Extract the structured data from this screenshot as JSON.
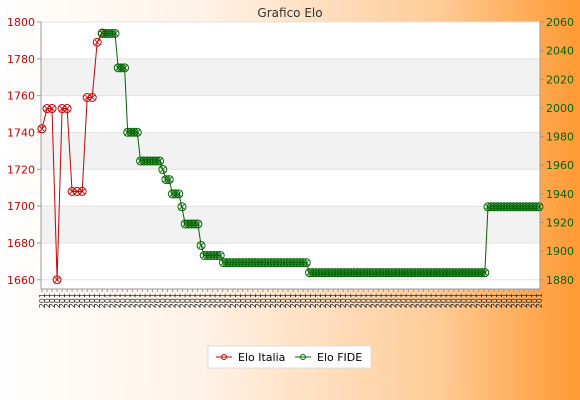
{
  "chart_data": {
    "type": "line",
    "title": "Grafico Elo",
    "y_left": {
      "ticks": [
        1660,
        1680,
        1700,
        1720,
        1740,
        1760,
        1780,
        1800
      ],
      "range": [
        1655,
        1800
      ],
      "color": "#cc0000"
    },
    "y_right": {
      "ticks": [
        1880,
        1900,
        1920,
        1940,
        1960,
        1980,
        2000,
        2020,
        2040,
        2060
      ],
      "range": [
        1873.6,
        2060
      ],
      "color": "#006600"
    },
    "x_tick_label": "201",
    "x_count": 100,
    "series": [
      {
        "name": "Elo Italia",
        "axis": "left",
        "color": "#cc0000",
        "values": [
          1742,
          1753,
          1753,
          1660,
          1753,
          1753,
          1708,
          1708,
          1708,
          1759,
          1759,
          1789,
          1794
        ]
      },
      {
        "name": "Elo FIDE",
        "axis": "right",
        "color": "#006600",
        "values": [
          2052,
          2052,
          2052,
          2052,
          2052,
          2028,
          2028,
          2028,
          1983,
          1983,
          1983,
          1983,
          1963,
          1963,
          1963,
          1963,
          1963,
          1963,
          1963,
          1957,
          1950,
          1950,
          1940,
          1940,
          1940,
          1931,
          1919,
          1919,
          1919,
          1919,
          1919,
          1904,
          1897,
          1897,
          1897,
          1897,
          1897,
          1897,
          1892,
          1892,
          1892,
          1892,
          1892,
          1892,
          1892,
          1892,
          1892,
          1892,
          1892,
          1892,
          1892,
          1892,
          1892,
          1892,
          1892,
          1892,
          1892,
          1892,
          1892,
          1892,
          1892,
          1892,
          1892,
          1892,
          1892,
          1885,
          1885,
          1885,
          1885,
          1885,
          1885,
          1885,
          1885,
          1885,
          1885,
          1885,
          1885,
          1885,
          1885,
          1885,
          1885,
          1885,
          1885,
          1885,
          1885,
          1885,
          1885,
          1885,
          1885,
          1885,
          1885,
          1885,
          1885,
          1885,
          1885,
          1885,
          1885,
          1885,
          1885,
          1885,
          1885,
          1885,
          1885,
          1885,
          1885,
          1885,
          1885,
          1885,
          1885,
          1885,
          1885,
          1885,
          1885,
          1885,
          1885,
          1885,
          1885,
          1885,
          1885,
          1885,
          1885,
          1931,
          1931,
          1931,
          1931,
          1931,
          1931,
          1931,
          1931,
          1931,
          1931,
          1931,
          1931,
          1931,
          1931,
          1931,
          1931,
          1931
        ]
      }
    ],
    "legend": [
      "Elo Italia",
      "Elo FIDE"
    ],
    "legend_position": "bottom-center",
    "grid": true
  }
}
